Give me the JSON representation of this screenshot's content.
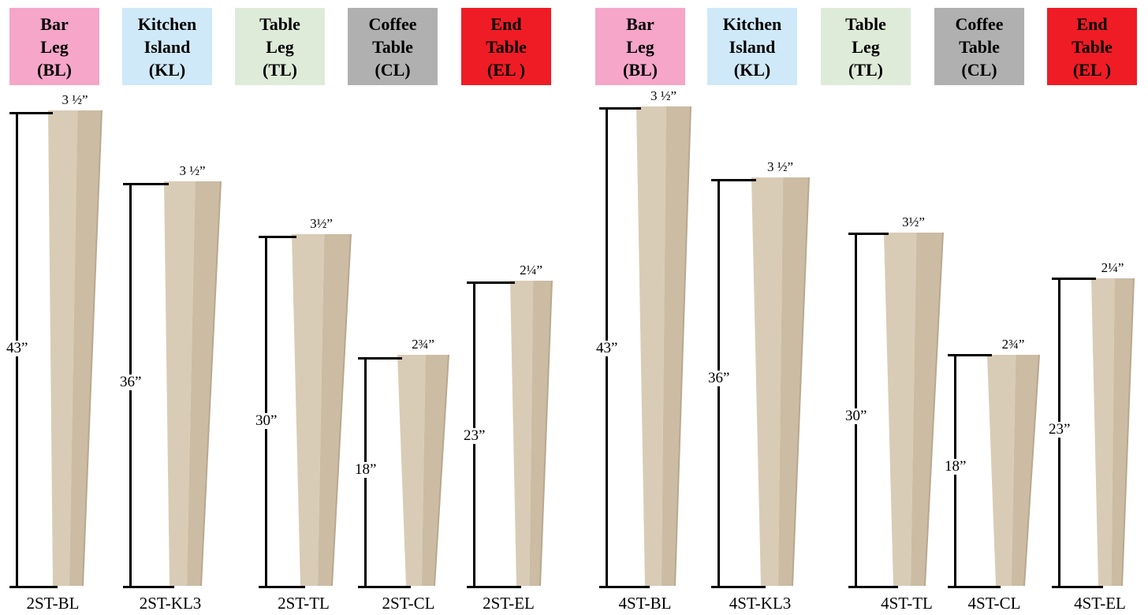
{
  "headers": [
    {
      "lines": [
        "Bar",
        "Leg",
        "(BL)"
      ],
      "bg": "#f5a6c9",
      "color": "#000000"
    },
    {
      "lines": [
        "Kitchen",
        "Island",
        "(KL)"
      ],
      "bg": "#cfe9f8",
      "color": "#000000"
    },
    {
      "lines": [
        "Table",
        "Leg",
        "(TL)"
      ],
      "bg": "#deebd9",
      "color": "#000000"
    },
    {
      "lines": [
        "Coffee",
        "Table",
        "(CL)"
      ],
      "bg": "#b0b0b0",
      "color": "#000000"
    },
    {
      "lines": [
        "End",
        "Table",
        "(EL )"
      ],
      "bg": "#ef1c25",
      "color": "#000000"
    },
    {
      "lines": [
        "Bar",
        "Leg",
        "(BL)"
      ],
      "bg": "#f5a6c9",
      "color": "#000000"
    },
    {
      "lines": [
        "Kitchen",
        "Island",
        "(KL)"
      ],
      "bg": "#cfe9f8",
      "color": "#000000"
    },
    {
      "lines": [
        "Table",
        "Leg",
        "(TL)"
      ],
      "bg": "#deebd9",
      "color": "#000000"
    },
    {
      "lines": [
        "Coffee",
        "Table",
        "(CL)"
      ],
      "bg": "#b0b0b0",
      "color": "#000000"
    },
    {
      "lines": [
        "End",
        "Table",
        "(EL )"
      ],
      "bg": "#ef1c25",
      "color": "#000000"
    }
  ],
  "legs": [
    {
      "code": "2ST-BL",
      "height": "43”",
      "width": "3 ½”"
    },
    {
      "code": "2ST-KL3",
      "height": "36”",
      "width": "3 ½”"
    },
    {
      "code": "2ST-TL",
      "height": "30”",
      "width": "3½”"
    },
    {
      "code": "2ST-CL",
      "height": "18”",
      "width": "2¾”"
    },
    {
      "code": "2ST-EL",
      "height": "23”",
      "width": "2¼”"
    },
    {
      "code": "4ST-BL",
      "height": "43”",
      "width": "3 ½”"
    },
    {
      "code": "4ST-KL3",
      "height": "36”",
      "width": "3 ½”"
    },
    {
      "code": "4ST-TL",
      "height": "30”",
      "width": "3½”"
    },
    {
      "code": "4ST-CL",
      "height": "18”",
      "width": "2¾”"
    },
    {
      "code": "4ST-EL",
      "height": "23”",
      "width": "2¼”"
    }
  ],
  "colors": {
    "wood_light": "#d9ccb6",
    "wood_mid": "#cbbca3",
    "wood_dark": "#b8a88e",
    "dimension_line": "#000000"
  }
}
